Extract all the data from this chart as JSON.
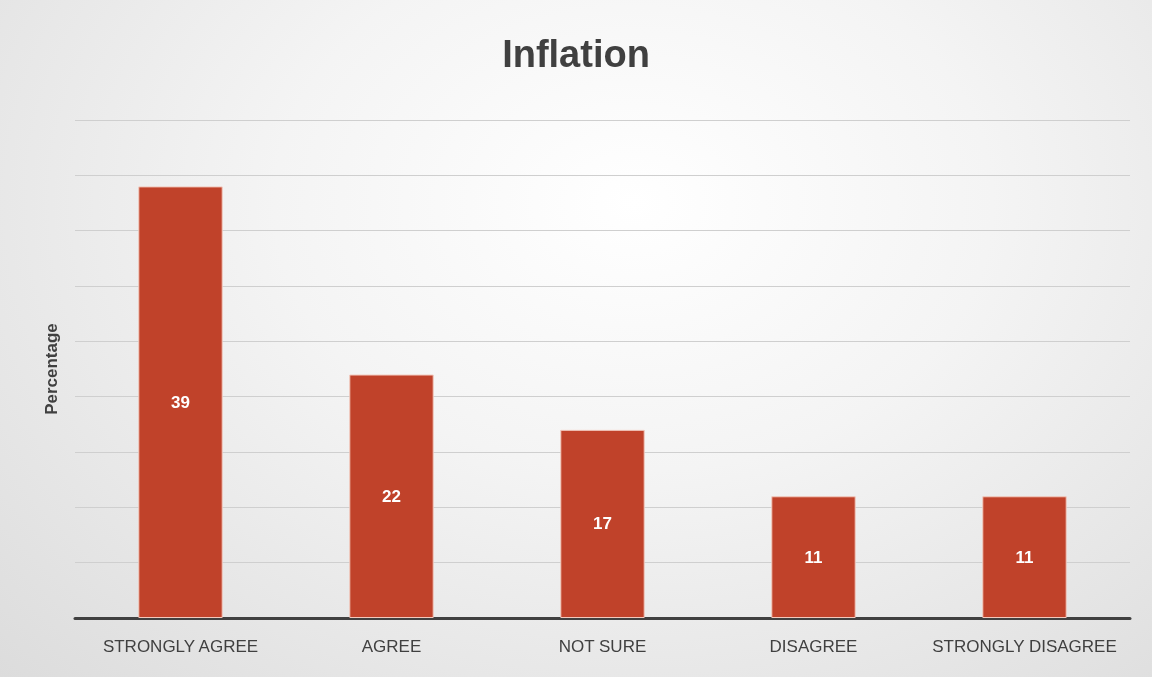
{
  "chart_data": {
    "type": "bar",
    "title": "Inflation",
    "ylabel": "Percentage",
    "categories": [
      "STRONGLY AGREE",
      "AGREE",
      "NOT SURE",
      "DISAGREE",
      "STRONGLY DISAGREE"
    ],
    "values": [
      39,
      22,
      17,
      11,
      11
    ],
    "color": "#c0422a",
    "ylim": [
      0,
      45
    ],
    "yticks": [
      {
        "value": 0,
        "label": null
      },
      {
        "value": 5,
        "label": null
      },
      {
        "value": 10,
        "label": null
      },
      {
        "value": 15,
        "label": null
      },
      {
        "value": 20,
        "label": null
      },
      {
        "value": 25,
        "label": null
      },
      {
        "value": 30,
        "label": null
      },
      {
        "value": 35,
        "label": null
      },
      {
        "value": 40,
        "label": null
      },
      {
        "value": 45,
        "label": null
      }
    ],
    "grid": "y",
    "tick_labels": "x",
    "data_labels": true
  }
}
